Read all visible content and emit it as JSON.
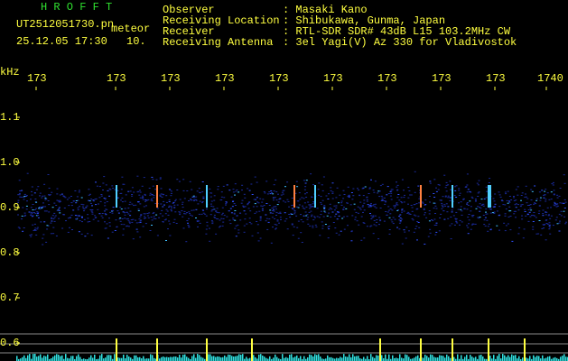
{
  "header": {
    "app": "H R O F F T",
    "file": "UT2512051730.pn",
    "mode": "meteor",
    "datetime": "25.12.05 17:30",
    "interval": "10.",
    "fields": [
      {
        "label": "Observer",
        "value": ": Masaki Kano"
      },
      {
        "label": "Receiving Location",
        "value": ": Shibukawa, Gunma, Japan"
      },
      {
        "label": "Receiver",
        "value": ": RTL-SDR SDR# 43dB L15 103.2MHz CW"
      },
      {
        "label": "Receiving Antenna",
        "value": ": 3el Yagi(V) Az 330 for Vladivostok"
      }
    ]
  },
  "axes": {
    "unit": "kHz",
    "x_labels": [
      "173",
      "173",
      "173",
      "173",
      "173",
      "173",
      "173",
      "173",
      "173",
      "1740"
    ],
    "y_labels": [
      "1.1",
      "1.0",
      "0.9",
      "0.8",
      "0.7",
      "0.6"
    ]
  }
}
